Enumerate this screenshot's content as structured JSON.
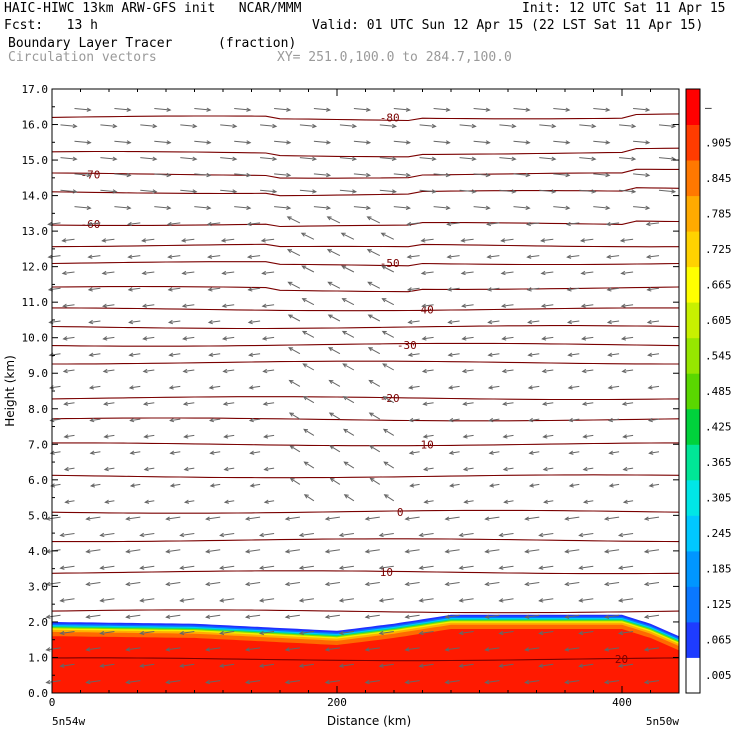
{
  "header": {
    "line1_left": "HAIC-HIWC 13km ARW-GFS init   NCAR/MMM",
    "line1_right": "Init: 12 UTC Sat 11 Apr 15",
    "line2_left": "Fcst:   13 h",
    "line2_right": "Valid: 01 UTC Sun 12 Apr 15 (22 LST Sat 11 Apr 15)",
    "line3_left": "Boundary Layer Tracer",
    "line3_mid": "(fraction)",
    "line4_left": "Circulation vectors",
    "line4_mid": "XY= 251.0,100.0 to 284.7,100.0"
  },
  "chart_data": {
    "type": "heatmap",
    "xlabel": "Distance (km)",
    "ylabel": "Height (km)",
    "xlim": [
      0,
      440
    ],
    "ylim": [
      0,
      17
    ],
    "x_ticks": [
      0,
      200,
      400
    ],
    "y_ticks": [
      "0.0",
      "1.0",
      "2.0",
      "3.0",
      "4.0",
      "5.0",
      "6.0",
      "7.0",
      "8.0",
      "9.0",
      "10.0",
      "11.0",
      "12.0",
      "13.0",
      "14.0",
      "15.0",
      "16.0",
      "17.0"
    ],
    "x_end_labels": {
      "left": "5n54w",
      "right": "5n50w"
    },
    "field": {
      "name": "Boundary Layer Tracer (fraction)",
      "description_top_km": [
        [
          0,
          2.0
        ],
        [
          100,
          1.95
        ],
        [
          200,
          1.75
        ],
        [
          240,
          1.95
        ],
        [
          280,
          2.2
        ],
        [
          360,
          2.2
        ],
        [
          400,
          2.2
        ],
        [
          420,
          1.95
        ],
        [
          440,
          1.6
        ]
      ]
    },
    "colorbar": {
      "labels": [
        ".005",
        ".065",
        ".125",
        ".185",
        ".245",
        ".305",
        ".365",
        ".425",
        ".485",
        ".545",
        ".605",
        ".665",
        ".725",
        ".785",
        ".845",
        ".905",
        "–"
      ],
      "colors": [
        "#ffffff",
        "#1e3cff",
        "#0a78ff",
        "#0096ff",
        "#00c8ff",
        "#00e6e6",
        "#00e696",
        "#00d23c",
        "#5ad700",
        "#96e600",
        "#c8f000",
        "#ffff00",
        "#ffd200",
        "#ffaa00",
        "#ff7800",
        "#ff3c00",
        "#ff0000"
      ]
    },
    "contours": [
      {
        "label": "-80",
        "height_km": 16.2
      },
      {
        "label": "",
        "height_km": 15.2
      },
      {
        "label": "-70",
        "height_km": 14.6
      },
      {
        "label": "",
        "height_km": 14.1
      },
      {
        "label": "-60",
        "height_km": 13.2
      },
      {
        "label": "",
        "height_km": 12.6
      },
      {
        "label": "-50",
        "height_km": 12.1
      },
      {
        "label": "",
        "height_km": 11.4
      },
      {
        "label": "-40",
        "height_km": 10.8
      },
      {
        "label": "",
        "height_km": 10.3
      },
      {
        "label": "-30",
        "height_km": 9.8
      },
      {
        "label": "",
        "height_km": 9.3
      },
      {
        "label": "-20",
        "height_km": 8.3
      },
      {
        "label": "",
        "height_km": 7.7
      },
      {
        "label": "-10",
        "height_km": 7.0
      },
      {
        "label": "",
        "height_km": 6.1
      },
      {
        "label": "0",
        "height_km": 5.1
      },
      {
        "label": "",
        "height_km": 4.3
      },
      {
        "label": "10",
        "height_km": 3.4
      },
      {
        "label": "",
        "height_km": 2.3
      },
      {
        "label": "20",
        "height_km": 0.95
      }
    ]
  }
}
